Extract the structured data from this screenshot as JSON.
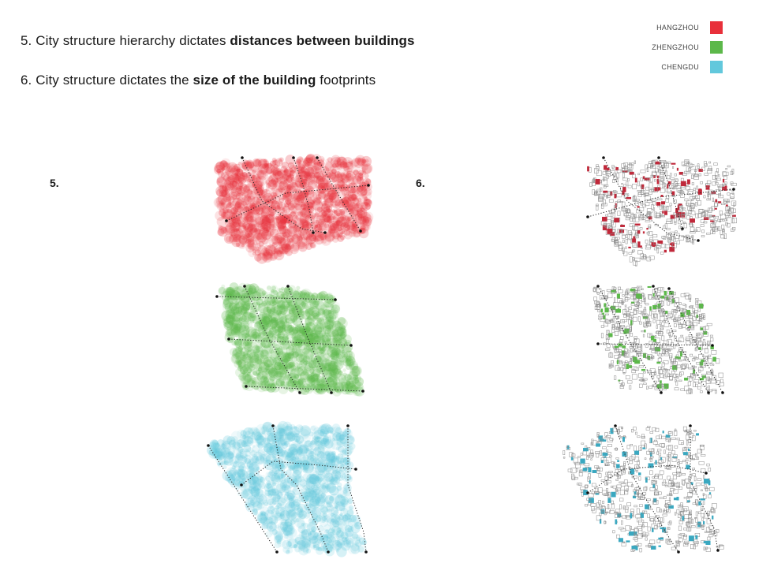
{
  "heading": {
    "line5": {
      "prefix": "5. City structure hierarchy dictates ",
      "bold": "distances between buildings",
      "suffix": ""
    },
    "line6": {
      "prefix": "6. City structure dictates the ",
      "bold": "size of the building",
      "suffix": " footprints"
    }
  },
  "legend": [
    {
      "label": "HANGZHOU",
      "color": "#e8303a"
    },
    {
      "label": "ZHENGZHOU",
      "color": "#5cb84a"
    },
    {
      "label": "CHENGDU",
      "color": "#62c8dc"
    }
  ],
  "sections": {
    "five": "5.",
    "six": "6."
  }
}
